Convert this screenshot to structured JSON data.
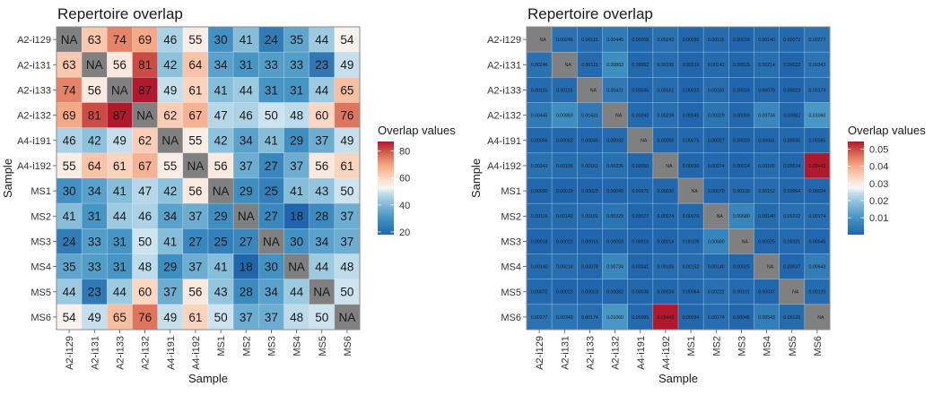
{
  "chart_data": [
    {
      "type": "heatmap",
      "title": "Repertoire overlap",
      "xlabel": "Sample",
      "ylabel": "Sample",
      "legend_title": "Overlap values",
      "legend_position": "right",
      "legend_ticks": [
        "20",
        "40",
        "60",
        "80"
      ],
      "legend_tick_values": [
        20,
        40,
        60,
        80
      ],
      "value_range": [
        18,
        87
      ],
      "color_low": "#2166ac",
      "color_mid": "#f7f7f7",
      "color_high": "#b2182b",
      "na_color": "#808080",
      "na_label": "NA",
      "categories": [
        "A2-i129",
        "A2-i131",
        "A2-i133",
        "A2-i132",
        "A4-i191",
        "A4-i192",
        "MS1",
        "MS2",
        "MS3",
        "MS4",
        "MS5",
        "MS6"
      ],
      "values": [
        [
          null,
          63,
          74,
          69,
          46,
          55,
          30,
          41,
          24,
          35,
          44,
          54
        ],
        [
          63,
          null,
          56,
          81,
          42,
          64,
          34,
          31,
          33,
          33,
          23,
          49
        ],
        [
          74,
          56,
          null,
          87,
          49,
          61,
          41,
          44,
          31,
          31,
          44,
          65
        ],
        [
          69,
          81,
          87,
          null,
          62,
          67,
          47,
          46,
          50,
          48,
          60,
          76
        ],
        [
          46,
          42,
          49,
          62,
          null,
          55,
          42,
          34,
          41,
          29,
          37,
          49
        ],
        [
          55,
          64,
          61,
          67,
          55,
          null,
          56,
          37,
          27,
          37,
          56,
          61
        ],
        [
          30,
          34,
          41,
          47,
          42,
          56,
          null,
          29,
          25,
          41,
          43,
          50
        ],
        [
          41,
          31,
          44,
          46,
          34,
          37,
          29,
          null,
          27,
          18,
          28,
          37
        ],
        [
          24,
          33,
          31,
          50,
          41,
          27,
          25,
          27,
          null,
          30,
          34,
          37
        ],
        [
          35,
          33,
          31,
          48,
          29,
          37,
          41,
          18,
          30,
          null,
          44,
          48
        ],
        [
          44,
          23,
          44,
          60,
          37,
          56,
          43,
          28,
          34,
          44,
          null,
          50
        ],
        [
          54,
          49,
          65,
          76,
          49,
          61,
          50,
          37,
          37,
          48,
          50,
          null
        ]
      ],
      "labels": [
        [
          "NA",
          "63",
          "74",
          "69",
          "46",
          "55",
          "30",
          "41",
          "24",
          "35",
          "44",
          "54"
        ],
        [
          "63",
          "NA",
          "56",
          "81",
          "42",
          "64",
          "34",
          "31",
          "33",
          "33",
          "23",
          "49"
        ],
        [
          "74",
          "56",
          "NA",
          "87",
          "49",
          "61",
          "41",
          "44",
          "31",
          "31",
          "44",
          "65"
        ],
        [
          "69",
          "81",
          "87",
          "NA",
          "62",
          "67",
          "47",
          "46",
          "50",
          "48",
          "60",
          "76"
        ],
        [
          "46",
          "42",
          "49",
          "62",
          "NA",
          "55",
          "42",
          "34",
          "41",
          "29",
          "37",
          "49"
        ],
        [
          "55",
          "64",
          "61",
          "67",
          "55",
          "NA",
          "56",
          "37",
          "27",
          "37",
          "56",
          "61"
        ],
        [
          "30",
          "34",
          "41",
          "47",
          "42",
          "56",
          "NA",
          "29",
          "25",
          "41",
          "43",
          "50"
        ],
        [
          "41",
          "31",
          "44",
          "46",
          "34",
          "37",
          "29",
          "NA",
          "27",
          "18",
          "28",
          "37"
        ],
        [
          "24",
          "33",
          "31",
          "50",
          "41",
          "27",
          "25",
          "27",
          "NA",
          "30",
          "34",
          "37"
        ],
        [
          "35",
          "33",
          "31",
          "48",
          "29",
          "37",
          "41",
          "18",
          "30",
          "NA",
          "44",
          "48"
        ],
        [
          "44",
          "23",
          "44",
          "60",
          "37",
          "56",
          "43",
          "28",
          "34",
          "44",
          "NA",
          "50"
        ],
        [
          "54",
          "49",
          "65",
          "76",
          "49",
          "61",
          "50",
          "37",
          "37",
          "48",
          "50",
          "NA"
        ]
      ]
    },
    {
      "type": "heatmap",
      "title": "Repertoire overlap",
      "xlabel": "Sample",
      "ylabel": "Sample",
      "legend_title": "Overlap values",
      "legend_position": "right",
      "legend_ticks": [
        "0.01",
        "0.02",
        "0.03",
        "0.04",
        "0.05"
      ],
      "legend_tick_values": [
        0.01,
        0.02,
        0.03,
        0.04,
        0.05
      ],
      "value_range": [
        0.00014,
        0.05443
      ],
      "color_low": "#2166ac",
      "color_mid": "#f7f7f7",
      "color_high": "#b2182b",
      "na_color": "#808080",
      "na_label": "NA",
      "categories": [
        "A2-i129",
        "A2-i131",
        "A2-i133",
        "A2-i132",
        "A4-i191",
        "A4-i192",
        "MS1",
        "MS2",
        "MS3",
        "MS4",
        "MS5",
        "MS6"
      ],
      "values": [
        [
          null,
          0.00246,
          0.00115,
          0.00445,
          0.00058,
          0.00243,
          0.0003,
          0.00115,
          0.00018,
          0.0014,
          0.00072,
          0.00277
        ],
        [
          0.00246,
          null,
          0.00115,
          0.00883,
          0.00062,
          0.00195,
          0.00019,
          0.00143,
          0.00025,
          0.00214,
          0.00022,
          0.00343
        ],
        [
          0.00115,
          0.00115,
          null,
          0.00431,
          0.00045,
          0.00161,
          0.00022,
          0.00181,
          0.00016,
          0.00078,
          0.00023,
          0.00174
        ],
        [
          0.00445,
          0.00883,
          0.00431,
          null,
          0.00092,
          0.00236,
          0.00045,
          0.00329,
          0.00059,
          0.00734,
          0.00082,
          0.0106
        ],
        [
          0.00058,
          0.00062,
          0.00045,
          0.00092,
          null,
          0.0005,
          0.00075,
          0.00027,
          0.00019,
          0.00041,
          0.00035,
          0.00085
        ],
        [
          0.00243,
          0.00195,
          0.00161,
          0.00236,
          0.0005,
          null,
          0.0003,
          0.00074,
          0.00014,
          0.00165,
          0.00034,
          0.05443
        ],
        [
          0.0003,
          0.00019,
          0.00022,
          0.00045,
          0.00075,
          0.0003,
          null,
          0.0007,
          0.00109,
          0.00152,
          0.00064,
          0.00034
        ],
        [
          0.00115,
          0.00143,
          0.00181,
          0.00329,
          0.00027,
          0.00074,
          0.0007,
          null,
          0.0068,
          0.0014,
          0.00222,
          0.00174
        ],
        [
          0.00018,
          0.00022,
          0.00016,
          0.00059,
          0.00019,
          0.00014,
          0.00109,
          0.0068,
          null,
          0.00025,
          0.00101,
          0.00045
        ],
        [
          0.0014,
          0.00214,
          0.00078,
          0.00734,
          0.00041,
          0.00165,
          0.00152,
          0.0014,
          0.00025,
          null,
          0.00037,
          0.00543
        ],
        [
          0.00072,
          0.00022,
          0.00023,
          0.00082,
          0.00035,
          0.00034,
          0.00064,
          0.00222,
          0.00101,
          0.00037,
          null,
          0.0012
        ],
        [
          0.00277,
          0.00343,
          0.00174,
          0.0106,
          0.00085,
          0.05443,
          0.00034,
          0.00174,
          0.00045,
          0.00543,
          0.0012,
          null
        ]
      ],
      "labels": [
        [
          "NA",
          "0.00246",
          "0.00115",
          "0.00445",
          "0.00058",
          "0.00243",
          "0.00030",
          "0.00115",
          "0.00018",
          "0.00140",
          "0.00072",
          "0.00277"
        ],
        [
          "0.00246",
          "NA",
          "0.00115",
          "0.00883",
          "0.00062",
          "0.00195",
          "0.00019",
          "0.00143",
          "0.00025",
          "0.00214",
          "0.00022",
          "0.00343"
        ],
        [
          "0.00115",
          "0.00115",
          "NA",
          "0.00431",
          "0.00045",
          "0.00161",
          "0.00022",
          "0.00181",
          "0.00016",
          "0.00078",
          "0.00023",
          "0.00174"
        ],
        [
          "0.00445",
          "0.00883",
          "0.00431",
          "NA",
          "0.00092",
          "0.00236",
          "0.00045",
          "0.00329",
          "0.00059",
          "0.00734",
          "0.00082",
          "0.01060"
        ],
        [
          "0.00058",
          "0.00062",
          "0.00045",
          "0.00092",
          "NA",
          "0.00050",
          "0.00075",
          "0.00027",
          "0.00019",
          "0.00041",
          "0.00035",
          "0.00085"
        ],
        [
          "0.00243",
          "0.00195",
          "0.00161",
          "0.00236",
          "0.00050",
          "NA",
          "0.00030",
          "0.00074",
          "0.00014",
          "0.00165",
          "0.00034",
          "0.05443"
        ],
        [
          "0.00030",
          "0.00019",
          "0.00022",
          "0.00045",
          "0.00075",
          "0.00030",
          "NA",
          "0.00070",
          "0.00109",
          "0.00152",
          "0.00064",
          "0.00034"
        ],
        [
          "0.00115",
          "0.00143",
          "0.00181",
          "0.00329",
          "0.00027",
          "0.00074",
          "0.00070",
          "NA",
          "0.00680",
          "0.00140",
          "0.00222",
          "0.00174"
        ],
        [
          "0.00018",
          "0.00022",
          "0.00016",
          "0.00059",
          "0.00019",
          "0.00014",
          "0.00109",
          "0.00680",
          "NA",
          "0.00025",
          "0.00101",
          "0.00045"
        ],
        [
          "0.00140",
          "0.00214",
          "0.00078",
          "0.00734",
          "0.00041",
          "0.00165",
          "0.00152",
          "0.00140",
          "0.00025",
          "NA",
          "0.00037",
          "0.00543"
        ],
        [
          "0.00072",
          "0.00022",
          "0.00023",
          "0.00082",
          "0.00035",
          "0.00034",
          "0.00064",
          "0.00222",
          "0.00101",
          "0.00037",
          "NA",
          "0.00120"
        ],
        [
          "0.00277",
          "0.00343",
          "0.00174",
          "0.01060",
          "0.00085",
          "0.05443",
          "0.00034",
          "0.00174",
          "0.00045",
          "0.00543",
          "0.00120",
          "NA"
        ]
      ]
    }
  ]
}
